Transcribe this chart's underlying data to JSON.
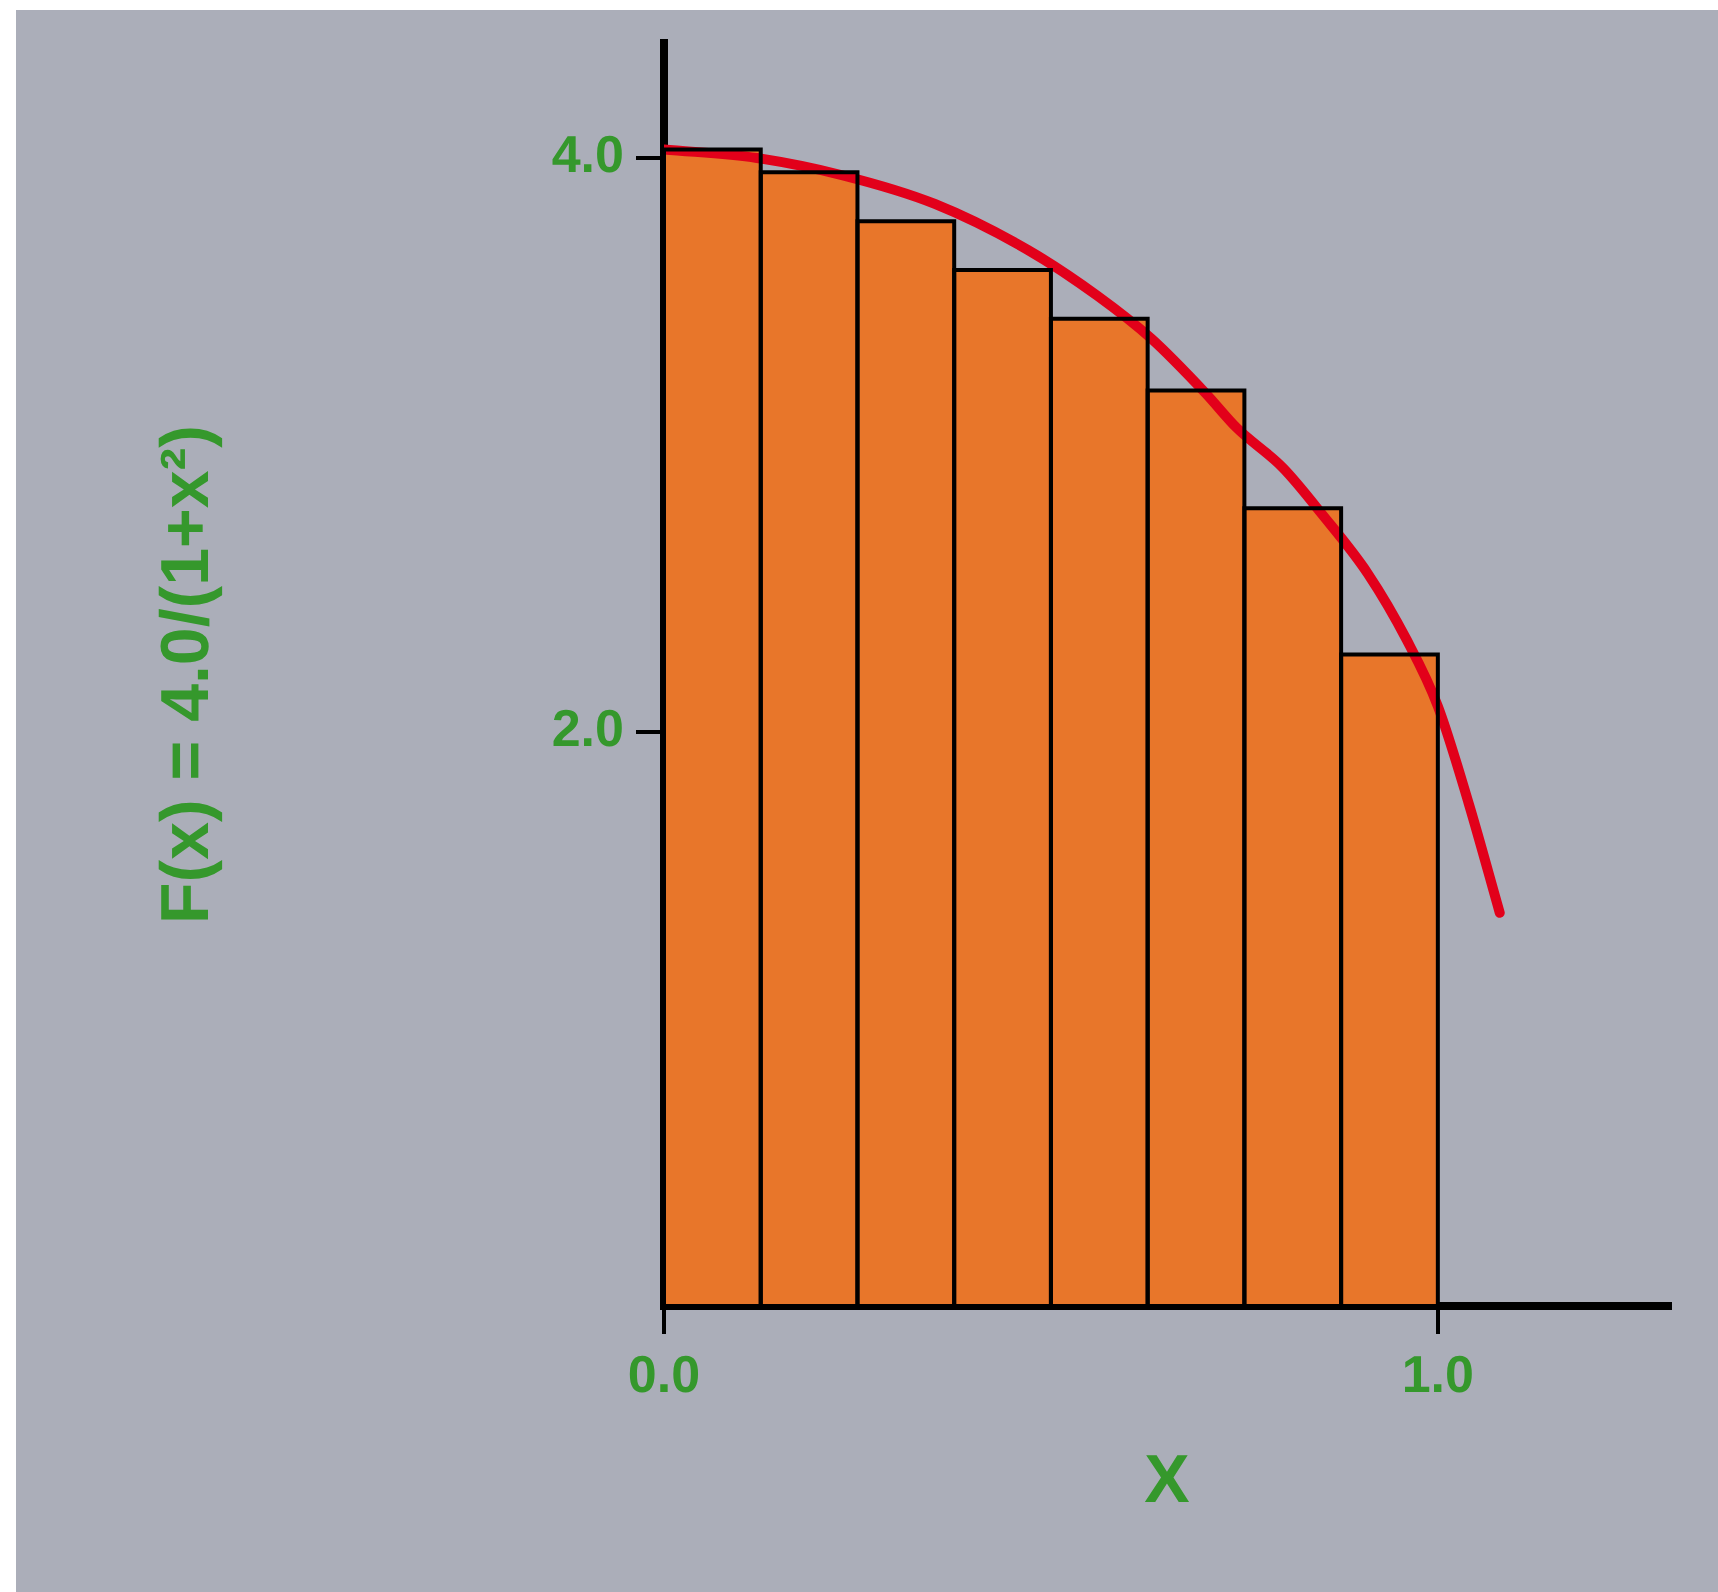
{
  "chart_data": {
    "type": "histogram",
    "xlabel": "X",
    "ylabel": "F(x) = 4.0/(1+x²)",
    "bins": [
      0,
      0.125,
      0.25,
      0.375,
      0.5,
      0.625,
      0.75,
      0.875,
      1.0
    ],
    "series": [
      {
        "type": "histogram",
        "color": "#e8762a",
        "values": [
          4.03,
          3.95,
          3.78,
          3.61,
          3.44,
          3.19,
          2.78,
          2.27
        ]
      },
      {
        "type": "line",
        "color": "#e2001a",
        "x": [
          0,
          0.12,
          0.23,
          0.35,
          0.47,
          0.56,
          0.63,
          0.7,
          0.74,
          0.8,
          0.85,
          0.91,
          0.96,
          1.0,
          1.04,
          1.08
        ],
        "values": [
          4.03,
          4.0,
          3.94,
          3.84,
          3.68,
          3.52,
          3.37,
          3.18,
          3.06,
          2.92,
          2.76,
          2.55,
          2.32,
          2.09,
          1.75,
          1.37
        ]
      }
    ],
    "xlim": [
      0,
      1.3
    ],
    "xticks": [
      {
        "value": 0,
        "label": "0.0"
      },
      {
        "value": 1,
        "label": "1.0"
      }
    ],
    "ylim": [
      0,
      4.4
    ],
    "yticks": [
      {
        "value": 2,
        "label": "2.0"
      },
      {
        "value": 4,
        "label": "4.0"
      }
    ],
    "grid": false,
    "legend": false
  }
}
